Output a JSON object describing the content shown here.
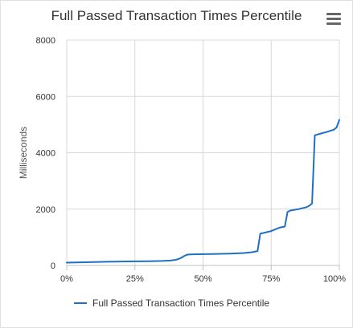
{
  "chart_data": {
    "type": "line",
    "title": "Full Passed Transaction Times Percentile",
    "ylabel": "Milliseconds",
    "xlabel": "",
    "xlim": [
      0,
      100
    ],
    "ylim": [
      0,
      8000
    ],
    "x_tick_labels": [
      "0%",
      "25%",
      "50%",
      "75%",
      "100%"
    ],
    "x_ticks": [
      0,
      25,
      50,
      75,
      100
    ],
    "y_tick_labels": [
      "0",
      "2000",
      "4000",
      "6000",
      "8000"
    ],
    "y_ticks": [
      0,
      2000,
      4000,
      6000,
      8000
    ],
    "grid": true,
    "legend": "bottom",
    "series": [
      {
        "name": "Full Passed Transaction Times Percentile",
        "color": "#1f6fc5",
        "x": [
          0,
          5,
          10,
          15,
          20,
          25,
          30,
          35,
          38,
          40,
          41,
          42,
          43,
          44,
          45,
          50,
          55,
          60,
          65,
          68,
          70,
          71,
          72,
          75,
          78,
          80,
          81,
          82,
          85,
          88,
          89,
          90,
          91,
          92,
          95,
          98,
          99,
          100
        ],
        "y": [
          100,
          110,
          120,
          130,
          140,
          145,
          150,
          160,
          175,
          200,
          230,
          270,
          330,
          380,
          390,
          400,
          410,
          420,
          440,
          470,
          510,
          1130,
          1150,
          1220,
          1340,
          1380,
          1900,
          1950,
          2000,
          2070,
          2120,
          2200,
          4620,
          4650,
          4730,
          4820,
          4900,
          5170
        ]
      }
    ]
  },
  "menu_icon": "hamburger-menu-icon"
}
